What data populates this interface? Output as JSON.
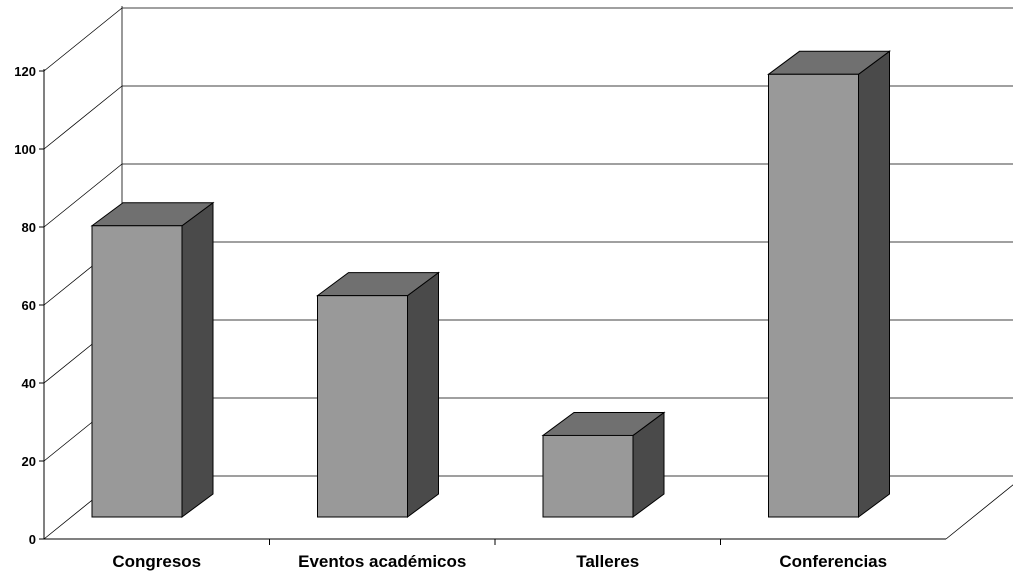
{
  "chart_data": {
    "type": "bar",
    "categories": [
      "Congresos",
      "Eventos académicos",
      "Talleres",
      "Conferencias"
    ],
    "values": [
      75,
      57,
      21,
      114
    ],
    "ylim": [
      0,
      120
    ],
    "yticks": [
      0,
      20,
      40,
      60,
      80,
      100,
      120
    ],
    "grid": true,
    "style": "3d",
    "colors": {
      "front": "#999999",
      "top": "#707070",
      "side": "#4a4a4a",
      "line": "#000000"
    }
  }
}
